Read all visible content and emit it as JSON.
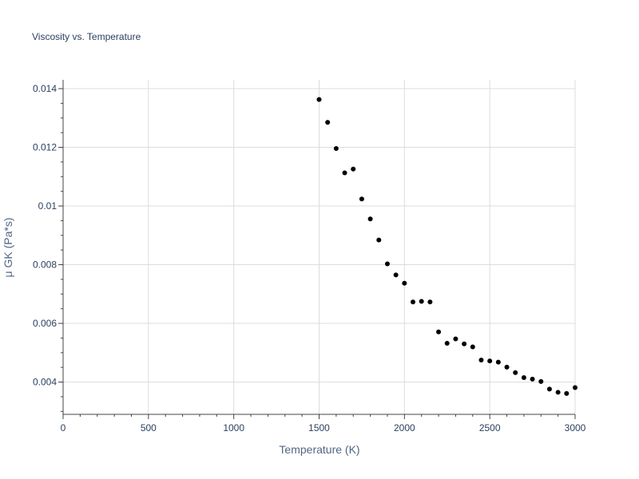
{
  "chart_data": {
    "type": "scatter",
    "title": "Viscosity vs. Temperature",
    "xlabel": "Temperature (K)",
    "ylabel": "μ GK (Pa*s)",
    "xlim": [
      0,
      3000
    ],
    "ylim": [
      0.0029,
      0.0143
    ],
    "xticks": [
      0,
      500,
      1000,
      1500,
      2000,
      2500,
      3000
    ],
    "xtick_labels": [
      "0",
      "500",
      "1000",
      "1500",
      "2000",
      "2500",
      "3000"
    ],
    "yticks": [
      0.004,
      0.006,
      0.008,
      0.01,
      0.012,
      0.014
    ],
    "ytick_labels": [
      "0.004",
      "0.006",
      "0.008",
      "0.01",
      "0.012",
      "0.014"
    ],
    "grid": true,
    "marker_color": "#000000",
    "series": [
      {
        "x": [
          1500,
          1550,
          1600,
          1650,
          1700,
          1750,
          1800,
          1850,
          1900,
          1950,
          2000,
          2050,
          2100,
          2150,
          2200,
          2250,
          2300,
          2350,
          2400,
          2450,
          2500,
          2550,
          2600,
          2650,
          2700,
          2750,
          2800,
          2850,
          2900,
          2950,
          3000
        ],
        "y": [
          0.01363,
          0.01285,
          0.01196,
          0.01113,
          0.01126,
          0.01024,
          0.00956,
          0.00884,
          0.00803,
          0.00765,
          0.00737,
          0.00673,
          0.00675,
          0.00673,
          0.00571,
          0.00532,
          0.00547,
          0.0053,
          0.0052,
          0.00475,
          0.00472,
          0.00468,
          0.00451,
          0.00432,
          0.00415,
          0.0041,
          0.00402,
          0.00376,
          0.00365,
          0.00361,
          0.00381
        ]
      }
    ]
  }
}
